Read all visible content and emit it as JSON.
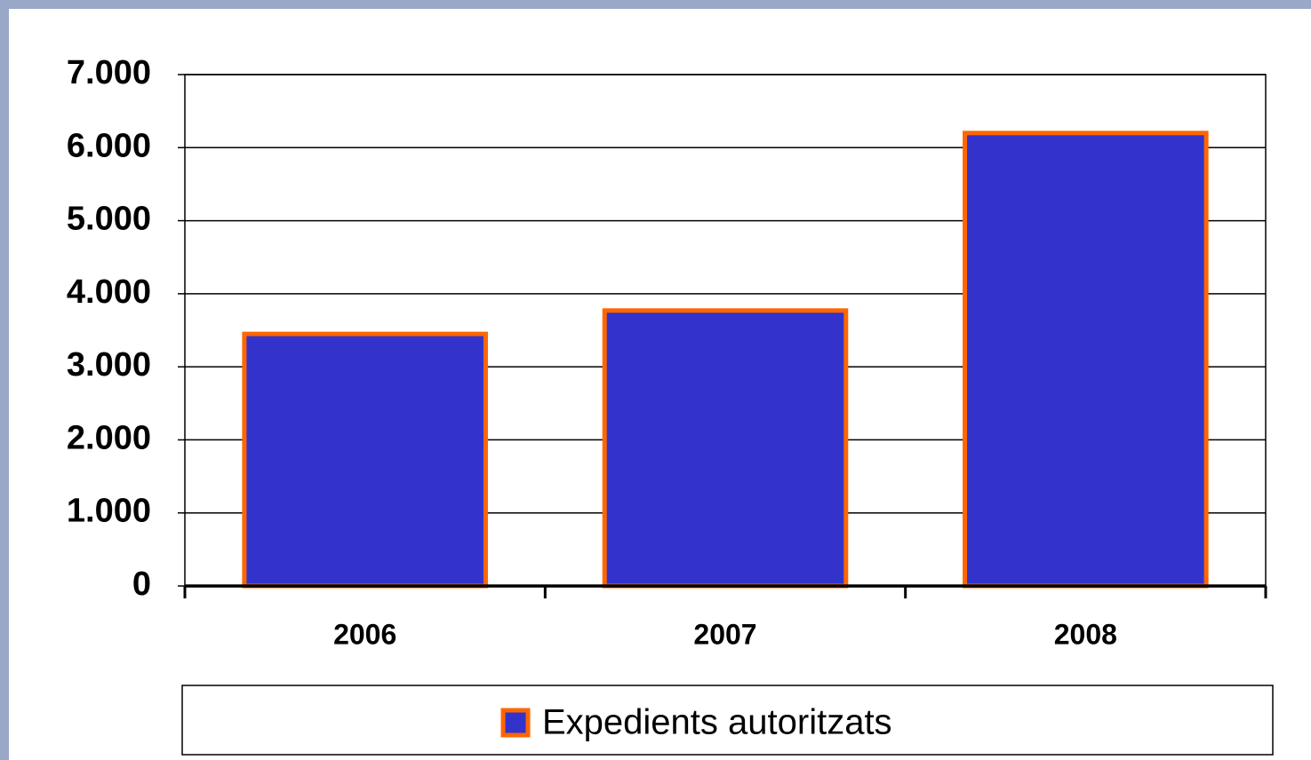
{
  "chart_data": {
    "type": "bar",
    "categories": [
      "2006",
      "2007",
      "2008"
    ],
    "series": [
      {
        "name": "Expedients autoritzats",
        "color": "#3333cc",
        "edgecolor": "#ff6600",
        "values": [
          3450,
          3770,
          6200
        ]
      }
    ],
    "ylim": [
      0,
      7000
    ],
    "yticks": [
      0,
      {
        "value": 1000,
        "label": "1.000"
      },
      {
        "value": 2000,
        "label": "2.000"
      },
      {
        "value": 3000,
        "label": "3.000"
      },
      {
        "value": 4000,
        "label": "4.000"
      },
      {
        "value": 5000,
        "label": "5.000"
      },
      {
        "value": 6000,
        "label": "6.000"
      },
      {
        "value": 7000,
        "label": "7.000"
      }
    ],
    "grid": true,
    "legend": "bottom"
  }
}
